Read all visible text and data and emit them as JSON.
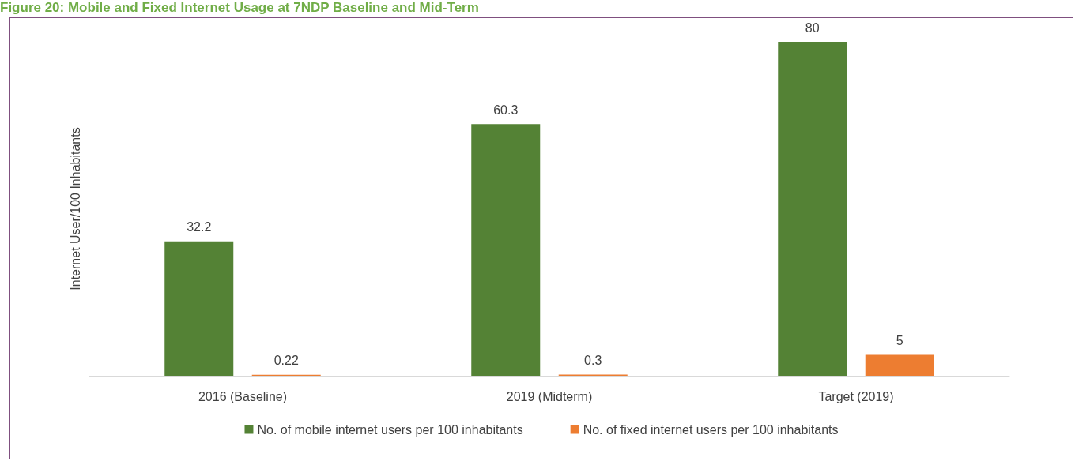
{
  "chart_data": {
    "type": "bar",
    "title": "Figure 20: Mobile and Fixed Internet Usage at 7NDP Baseline and Mid-Term",
    "ylabel": "Internet User/100 Inhabitants",
    "categories": [
      "2016 (Baseline)",
      "2019 (Midterm)",
      "Target (2019)"
    ],
    "series": [
      {
        "name": "No. of mobile internet users per 100 inhabitants",
        "color": "#548235",
        "values": [
          32.2,
          60.3,
          80
        ]
      },
      {
        "name": "No. of fixed internet users per 100 inhabitants",
        "color": "#ed7d31",
        "values": [
          0.22,
          0.3,
          5
        ]
      }
    ],
    "data_labels": true,
    "legend": "bottom",
    "grid": false
  }
}
